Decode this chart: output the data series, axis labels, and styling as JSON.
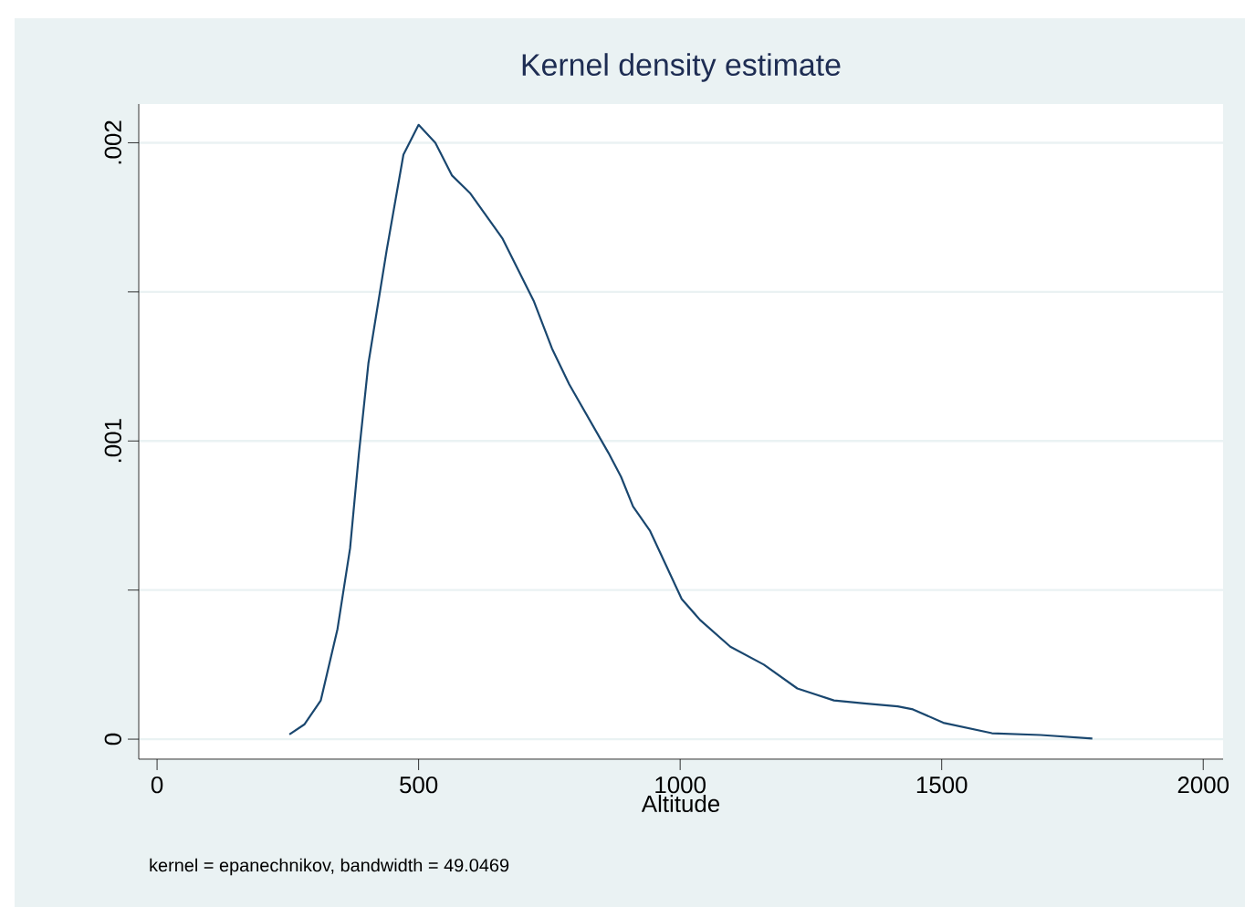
{
  "chart_data": {
    "type": "line",
    "title": "Kernel density estimate",
    "xlabel": "Altitude",
    "annotations": [
      "kernel = epanechnikov, bandwidth = 49.0469"
    ],
    "series": [
      {
        "color": "#1a476f",
        "x": [
          253,
          282,
          313,
          345,
          369,
          386,
          404,
          439,
          471,
          500,
          532,
          564,
          599,
          660,
          720,
          755,
          788,
          863,
          887,
          910,
          942,
          1003,
          1038,
          1096,
          1160,
          1224,
          1294,
          1352,
          1416,
          1445,
          1503,
          1596,
          1689,
          1788
        ],
        "values": [
          1.6e-05,
          5e-05,
          0.00013,
          0.00037,
          0.00064,
          0.00096,
          0.00126,
          0.00164,
          0.00196,
          0.00206,
          0.002,
          0.00189,
          0.00183,
          0.00168,
          0.00147,
          0.00131,
          0.00119,
          0.00096,
          0.00088,
          0.00078,
          0.0007,
          0.00047,
          0.0004,
          0.00031,
          0.00025,
          0.00017,
          0.00013,
          0.00012,
          0.00011,
          0.0001,
          5.5e-05,
          2e-05,
          1.4e-05,
          2e-06
        ]
      }
    ],
    "xlim": [
      -35,
      2038
    ],
    "ylim": [
      -6.7e-05,
      0.00213
    ],
    "xticks": [
      0,
      500,
      1000,
      1500,
      2000
    ],
    "yticks": [
      {
        "value": 0,
        "label": "0"
      },
      {
        "value": 0.0005,
        "label": null
      },
      {
        "value": 0.001,
        "label": ".001"
      },
      {
        "value": 0.0015,
        "label": null
      },
      {
        "value": 0.002,
        "label": ".002"
      }
    ],
    "grid": "y",
    "marker": "none",
    "line_style": "solid"
  }
}
